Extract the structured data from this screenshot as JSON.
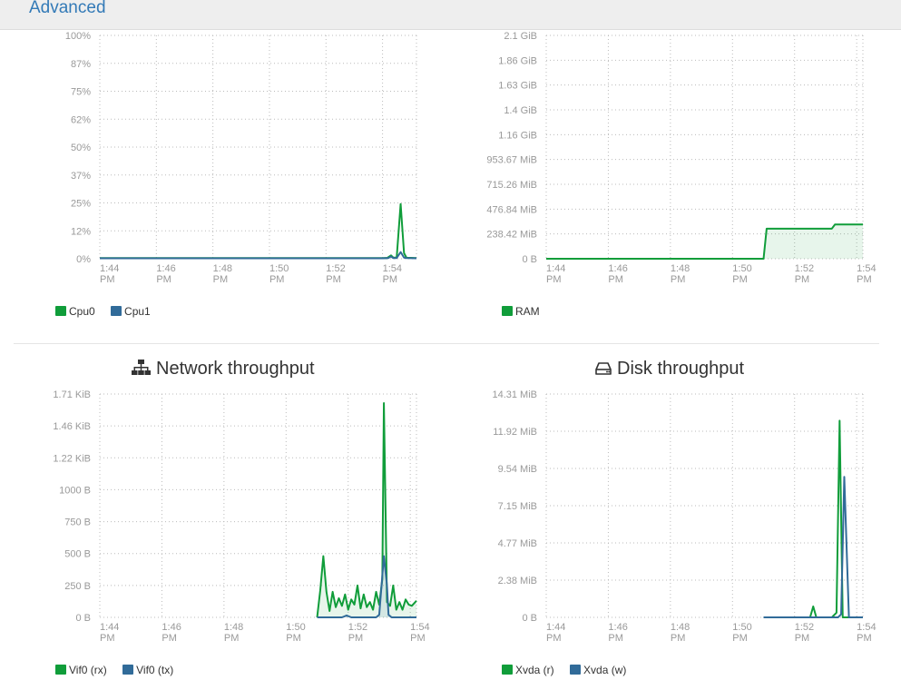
{
  "tabs": {
    "advanced_label": "Advanced"
  },
  "colors": {
    "green": "#109d3a",
    "blue": "#316b99",
    "grid": "#bbbbbb",
    "axis_text": "#999999"
  },
  "panels": {
    "network": {
      "title": "Network throughput",
      "icon": "sitemap-icon"
    },
    "disk": {
      "title": "Disk throughput",
      "icon": "hdd-icon"
    }
  },
  "chart_data": [
    {
      "id": "cpu",
      "type": "line",
      "x": [
        "1:44 PM",
        "1:46 PM",
        "1:48 PM",
        "1:50 PM",
        "1:52 PM",
        "1:54 PM"
      ],
      "y_ticks": [
        "100%",
        "87%",
        "75%",
        "62%",
        "50%",
        "37%",
        "25%",
        "12%",
        "0%"
      ],
      "ylim": [
        0,
        100
      ],
      "grid": true,
      "series": [
        {
          "name": "Cpu0",
          "color": "#109d3a",
          "fill": false,
          "points": [
            [
              0,
              0.3
            ],
            [
              10,
              0.3
            ],
            [
              10.12,
              0.35
            ],
            [
              10.16,
              0.3
            ],
            [
              10.3,
              1.5
            ],
            [
              10.38,
              0.5
            ],
            [
              10.5,
              0.5
            ],
            [
              10.64,
              24.5
            ],
            [
              10.76,
              2.5
            ],
            [
              10.85,
              0.4
            ],
            [
              11,
              0.4
            ],
            [
              11.2,
              0.3
            ]
          ]
        },
        {
          "name": "Cpu1",
          "color": "#316b99",
          "fill": false,
          "points": [
            [
              0,
              0.2
            ],
            [
              10,
              0.2
            ],
            [
              10.12,
              0.25
            ],
            [
              10.2,
              0.3
            ],
            [
              10.3,
              1.0
            ],
            [
              10.38,
              0.3
            ],
            [
              10.5,
              0.3
            ],
            [
              10.64,
              3.0
            ],
            [
              10.76,
              0.5
            ],
            [
              10.85,
              0.3
            ],
            [
              11.2,
              0.2
            ]
          ]
        }
      ]
    },
    {
      "id": "ram",
      "type": "area",
      "x": [
        "1:44 PM",
        "1:46 PM",
        "1:48 PM",
        "1:50 PM",
        "1:52 PM",
        "1:54 PM"
      ],
      "y_ticks": [
        "2.1 GiB",
        "1.86 GiB",
        "1.63 GiB",
        "1.4 GiB",
        "1.16 GiB",
        "953.67 MiB",
        "715.26 MiB",
        "476.84 MiB",
        "238.42 MiB",
        "0 B"
      ],
      "y_tick_values_mib": [
        2150.4,
        1904.6,
        1669.1,
        1433.6,
        1187.8,
        953.67,
        715.26,
        476.84,
        238.42,
        0
      ],
      "ylim": [
        0,
        2150.4
      ],
      "grid": true,
      "series": [
        {
          "name": "RAM",
          "color": "#109d3a",
          "fill": true,
          "points": [
            [
              0,
              0
            ],
            [
              7,
              0
            ],
            [
              7.1,
              290
            ],
            [
              9.2,
              290
            ],
            [
              9.3,
              330
            ],
            [
              10.2,
              330
            ]
          ]
        }
      ]
    },
    {
      "id": "network",
      "type": "area",
      "x": [
        "1:44 PM",
        "1:46 PM",
        "1:48 PM",
        "1:50 PM",
        "1:52 PM",
        "1:54 PM"
      ],
      "y_ticks": [
        "1.71 KiB",
        "1.46 KiB",
        "1.22 KiB",
        "1000 B",
        "750 B",
        "500 B",
        "250 B",
        "0 B"
      ],
      "y_tick_values_b": [
        1751,
        1495,
        1249,
        1000,
        750,
        500,
        250,
        0
      ],
      "ylim": [
        0,
        1751
      ],
      "grid": true,
      "series": [
        {
          "name": "Vif0 (rx)",
          "color": "#109d3a",
          "fill": true,
          "points": [
            [
              7,
              0
            ],
            [
              7.1,
              210
            ],
            [
              7.2,
              480
            ],
            [
              7.3,
              200
            ],
            [
              7.4,
              50
            ],
            [
              7.5,
              200
            ],
            [
              7.6,
              80
            ],
            [
              7.7,
              150
            ],
            [
              7.8,
              90
            ],
            [
              7.9,
              180
            ],
            [
              8.0,
              60
            ],
            [
              8.1,
              140
            ],
            [
              8.2,
              100
            ],
            [
              8.3,
              250
            ],
            [
              8.4,
              70
            ],
            [
              8.5,
              180
            ],
            [
              8.6,
              80
            ],
            [
              8.7,
              120
            ],
            [
              8.8,
              60
            ],
            [
              8.9,
              200
            ],
            [
              9.0,
              100
            ],
            [
              9.1,
              300
            ],
            [
              9.15,
              1680
            ],
            [
              9.25,
              120
            ],
            [
              9.35,
              90
            ],
            [
              9.45,
              250
            ],
            [
              9.55,
              60
            ],
            [
              9.65,
              120
            ],
            [
              9.75,
              60
            ],
            [
              9.85,
              140
            ],
            [
              9.95,
              100
            ],
            [
              10.05,
              90
            ],
            [
              10.2,
              130
            ]
          ]
        },
        {
          "name": "Vif0 (tx)",
          "color": "#316b99",
          "fill": true,
          "points": [
            [
              7,
              0
            ],
            [
              7.8,
              0
            ],
            [
              7.95,
              15
            ],
            [
              8.1,
              0
            ],
            [
              8.9,
              0
            ],
            [
              9.0,
              20
            ],
            [
              9.15,
              480
            ],
            [
              9.25,
              250
            ],
            [
              9.3,
              20
            ],
            [
              9.4,
              0
            ],
            [
              10.2,
              0
            ]
          ]
        }
      ]
    },
    {
      "id": "disk",
      "type": "area",
      "x": [
        "1:44 PM",
        "1:46 PM",
        "1:48 PM",
        "1:50 PM",
        "1:52 PM",
        "1:54 PM"
      ],
      "y_ticks": [
        "14.31 MiB",
        "11.92 MiB",
        "9.54 MiB",
        "7.15 MiB",
        "4.77 MiB",
        "2.38 MiB",
        "0 B"
      ],
      "y_tick_values_mib": [
        14.31,
        11.92,
        9.54,
        7.15,
        4.77,
        2.38,
        0
      ],
      "ylim": [
        0,
        14.31
      ],
      "grid": true,
      "series": [
        {
          "name": "Xvda (r)",
          "color": "#109d3a",
          "fill": false,
          "points": [
            [
              7.0,
              0
            ],
            [
              8.5,
              0
            ],
            [
              8.6,
              0.7
            ],
            [
              8.7,
              0
            ],
            [
              9.2,
              0
            ],
            [
              9.35,
              0.3
            ],
            [
              9.45,
              12.6
            ],
            [
              9.55,
              0
            ],
            [
              10.2,
              0
            ]
          ]
        },
        {
          "name": "Xvda (w)",
          "color": "#316b99",
          "fill": false,
          "points": [
            [
              7.0,
              0
            ],
            [
              9.4,
              0
            ],
            [
              9.5,
              0.2
            ],
            [
              9.6,
              9.0
            ],
            [
              9.75,
              0
            ],
            [
              10.2,
              0
            ]
          ]
        }
      ]
    }
  ]
}
